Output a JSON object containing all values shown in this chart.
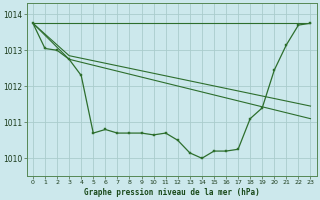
{
  "title": "Graphe pression niveau de la mer (hPa)",
  "background_color": "#cce8ec",
  "grid_color": "#aacccc",
  "line_color": "#2d6e2d",
  "xlim": [
    -0.5,
    23.5
  ],
  "ylim": [
    1009.5,
    1014.3
  ],
  "yticks": [
    1010,
    1011,
    1012,
    1013,
    1014
  ],
  "xticks": [
    0,
    1,
    2,
    3,
    4,
    5,
    6,
    7,
    8,
    9,
    10,
    11,
    12,
    13,
    14,
    15,
    16,
    17,
    18,
    19,
    20,
    21,
    22,
    23
  ],
  "series_main": {
    "x": [
      0,
      1,
      2,
      3,
      4,
      5,
      6,
      7,
      8,
      9,
      10,
      11,
      12,
      13,
      14,
      15,
      16,
      17,
      18,
      19,
      20,
      21,
      22,
      23
    ],
    "y": [
      1013.75,
      1013.05,
      1013.0,
      1012.75,
      1012.3,
      1010.7,
      1010.8,
      1010.7,
      1010.7,
      1010.7,
      1010.65,
      1010.7,
      1010.5,
      1010.15,
      1010.0,
      1010.2,
      1010.2,
      1010.25,
      1011.1,
      1011.4,
      1012.45,
      1013.15,
      1013.7,
      1013.75
    ]
  },
  "line2": {
    "x": [
      0,
      23
    ],
    "y": [
      1013.75,
      1013.75
    ]
  },
  "line3": {
    "x": [
      0,
      3,
      23
    ],
    "y": [
      1013.75,
      1012.85,
      1011.45
    ]
  },
  "line4": {
    "x": [
      0,
      3,
      23
    ],
    "y": [
      1013.75,
      1012.75,
      1011.1
    ]
  }
}
